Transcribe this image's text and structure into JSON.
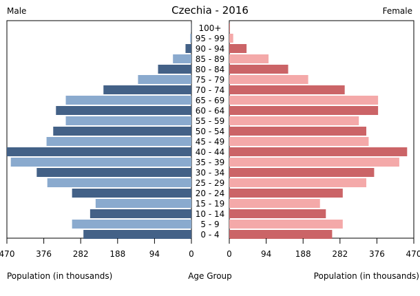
{
  "chart_data": {
    "type": "bar",
    "title": "Czechia - 2016",
    "left_label": "Male",
    "right_label": "Female",
    "xlabel_left": "Population (in thousands)",
    "xlabel_center": "Age Group",
    "xlabel_right": "Population (in thousands)",
    "xlim": [
      0,
      470
    ],
    "ticks": [
      470,
      376,
      282,
      188,
      94,
      0
    ],
    "tick_labels_left": [
      "470",
      "376",
      "282",
      "188",
      "94",
      "0"
    ],
    "tick_labels_right": [
      "0",
      "94",
      "188",
      "282",
      "376",
      "470"
    ],
    "categories": [
      "100+",
      "95 - 99",
      "90 - 94",
      "85 - 89",
      "80 - 84",
      "75 - 79",
      "70 - 74",
      "65 - 69",
      "60 - 64",
      "55 - 59",
      "50 - 54",
      "45 - 49",
      "40 - 44",
      "35 - 39",
      "30 - 34",
      "25 - 29",
      "20 - 24",
      "15 - 19",
      "10 - 14",
      "5 - 9",
      "0 - 4"
    ],
    "series": [
      {
        "name": "Male",
        "values": [
          0.5,
          3,
          15,
          47,
          85,
          136,
          224,
          320,
          345,
          320,
          352,
          369,
          473,
          460,
          394,
          367,
          304,
          244,
          258,
          304,
          275
        ]
      },
      {
        "name": "Female",
        "values": [
          1.5,
          10,
          44,
          100,
          150,
          201,
          294,
          379,
          379,
          330,
          349,
          355,
          453,
          433,
          369,
          349,
          289,
          231,
          246,
          289,
          262
        ]
      }
    ],
    "colors": {
      "male_dark": "#436187",
      "male_light": "#8aaace",
      "female_dark": "#cb6467",
      "female_light": "#f4a9a9"
    }
  }
}
